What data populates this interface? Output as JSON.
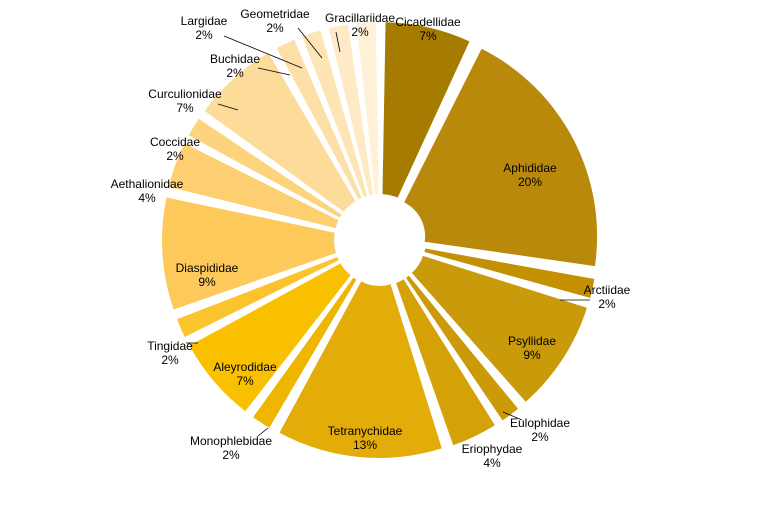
{
  "chart_data": {
    "type": "pie",
    "title": "",
    "unit": "%",
    "slices": [
      {
        "label": "Cicadellidae",
        "value": 7,
        "color": "#a67c00"
      },
      {
        "label": "Aphididae",
        "value": 20,
        "color": "#b8890b"
      },
      {
        "label": "Arctiidae",
        "value": 2,
        "color": "#c29000"
      },
      {
        "label": "Psyllidae",
        "value": 9,
        "color": "#c99a0a"
      },
      {
        "label": "Eulophidae",
        "value": 2,
        "color": "#cc9a06"
      },
      {
        "label": "Eriophydae",
        "value": 4,
        "color": "#d4a106"
      },
      {
        "label": "Tetranychidae",
        "value": 13,
        "color": "#e3ac08"
      },
      {
        "label": "Monophlebidae",
        "value": 2,
        "color": "#efb600"
      },
      {
        "label": "Aleyrodidae",
        "value": 7,
        "color": "#f9c000"
      },
      {
        "label": "Tingidae",
        "value": 2,
        "color": "#fcc42c"
      },
      {
        "label": "Diaspididae",
        "value": 9,
        "color": "#fdc95a"
      },
      {
        "label": "Aethalionidae",
        "value": 4,
        "color": "#fdcf70"
      },
      {
        "label": "Coccidae",
        "value": 2,
        "color": "#fdd47e"
      },
      {
        "label": "Curculionidae",
        "value": 7,
        "color": "#fddb98"
      },
      {
        "label": "Buchidae",
        "value": 2,
        "color": "#fde0a8"
      },
      {
        "label": "Largidae",
        "value": 2,
        "color": "#fee5b6"
      },
      {
        "label": "Geometridae",
        "value": 2,
        "color": "#feeac4"
      },
      {
        "label": "Gracillariidae",
        "value": 2,
        "color": "#fff0d8"
      }
    ]
  }
}
